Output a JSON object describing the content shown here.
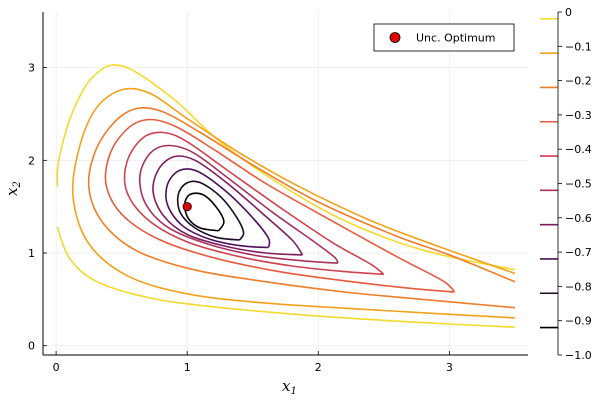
{
  "chart_data": {
    "type": "contour",
    "xlabel": "x",
    "xlabel_sub": "1",
    "ylabel": "x",
    "ylabel_sub": "2",
    "xlim": [
      -0.1,
      3.6
    ],
    "ylim": [
      -0.1,
      3.6
    ],
    "xticks": [
      0,
      1,
      2,
      3
    ],
    "yticks": [
      0,
      1,
      2,
      3
    ],
    "grid": true,
    "legend_position": "top-right",
    "optimum": {
      "name": "Unc. Optimum",
      "x": 1.0,
      "y": 1.5,
      "color": "#e00000"
    },
    "colorbar": {
      "min": -1.0,
      "max": 0,
      "ticks": [
        "0",
        "−0.1",
        "−0.2",
        "−0.3",
        "−0.4",
        "−0.5",
        "−0.6",
        "−0.7",
        "−0.8",
        "−0.9",
        "−1.0"
      ]
    },
    "contour_levels": [
      {
        "level": -0.1,
        "color": "#f5d92c",
        "points": [
          [
            3.5,
            0.82
          ],
          [
            2.8,
            1.03
          ],
          [
            2.2,
            1.35
          ],
          [
            1.7,
            1.75
          ],
          [
            1.25,
            2.2
          ],
          [
            0.88,
            2.68
          ],
          [
            0.5,
            3.02
          ],
          [
            0.28,
            2.9
          ],
          [
            0.12,
            2.5
          ],
          [
            0.02,
            2.0
          ],
          [
            0.01,
            1.72
          ]
        ]
      },
      {
        "level": -0.1,
        "color": "#f5d92c",
        "points": [
          [
            0.01,
            1.28
          ],
          [
            0.1,
            0.95
          ],
          [
            0.3,
            0.7
          ],
          [
            0.7,
            0.52
          ],
          [
            1.2,
            0.42
          ],
          [
            2.0,
            0.32
          ],
          [
            2.8,
            0.25
          ],
          [
            3.5,
            0.2
          ]
        ]
      },
      {
        "level": -0.2,
        "color": "#f2a21a",
        "points": [
          [
            3.5,
            0.3
          ],
          [
            2.5,
            0.38
          ],
          [
            1.6,
            0.46
          ],
          [
            1.0,
            0.56
          ],
          [
            0.55,
            0.75
          ],
          [
            0.25,
            1.1
          ],
          [
            0.13,
            1.6
          ],
          [
            0.17,
            2.1
          ],
          [
            0.3,
            2.55
          ],
          [
            0.5,
            2.76
          ],
          [
            0.72,
            2.72
          ],
          [
            1.0,
            2.45
          ],
          [
            1.4,
            2.08
          ],
          [
            1.85,
            1.72
          ],
          [
            2.4,
            1.35
          ],
          [
            2.9,
            1.08
          ],
          [
            3.5,
            0.78
          ]
        ]
      },
      {
        "level": -0.3,
        "color": "#ef7d2a",
        "points": [
          [
            3.5,
            0.41
          ],
          [
            2.8,
            0.5
          ],
          [
            2.2,
            0.58
          ],
          [
            1.55,
            0.7
          ],
          [
            1.05,
            0.82
          ],
          [
            0.62,
            1.02
          ],
          [
            0.36,
            1.32
          ],
          [
            0.25,
            1.7
          ],
          [
            0.3,
            2.1
          ],
          [
            0.45,
            2.42
          ],
          [
            0.62,
            2.56
          ],
          [
            0.82,
            2.52
          ],
          [
            1.1,
            2.3
          ],
          [
            1.5,
            1.95
          ],
          [
            2.0,
            1.55
          ],
          [
            2.6,
            1.18
          ],
          [
            3.0,
            0.98
          ],
          [
            3.5,
            0.69
          ]
        ]
      },
      {
        "level": -0.4,
        "color": "#e85a3e",
        "points": [
          [
            3.04,
            0.58
          ],
          [
            2.7,
            0.62
          ],
          [
            2.2,
            0.7
          ],
          [
            1.7,
            0.8
          ],
          [
            1.2,
            0.95
          ],
          [
            0.78,
            1.15
          ],
          [
            0.5,
            1.42
          ],
          [
            0.38,
            1.75
          ],
          [
            0.42,
            2.1
          ],
          [
            0.56,
            2.36
          ],
          [
            0.72,
            2.44
          ],
          [
            0.92,
            2.36
          ],
          [
            1.2,
            2.12
          ],
          [
            1.6,
            1.75
          ],
          [
            2.1,
            1.35
          ],
          [
            2.6,
            0.96
          ],
          [
            2.95,
            0.7
          ],
          [
            3.04,
            0.58
          ]
        ]
      },
      {
        "level": -0.5,
        "color": "#cf4250",
        "points": [
          [
            2.5,
            0.77
          ],
          [
            2.2,
            0.8
          ],
          [
            1.8,
            0.86
          ],
          [
            1.4,
            0.96
          ],
          [
            1.0,
            1.12
          ],
          [
            0.7,
            1.36
          ],
          [
            0.54,
            1.66
          ],
          [
            0.54,
            1.98
          ],
          [
            0.66,
            2.24
          ],
          [
            0.82,
            2.3
          ],
          [
            1.0,
            2.2
          ],
          [
            1.3,
            1.9
          ],
          [
            1.7,
            1.5
          ],
          [
            2.1,
            1.12
          ],
          [
            2.4,
            0.88
          ],
          [
            2.5,
            0.77
          ]
        ]
      },
      {
        "level": -0.6,
        "color": "#a8325c",
        "points": [
          [
            2.15,
            0.89
          ],
          [
            1.85,
            0.92
          ],
          [
            1.5,
            0.98
          ],
          [
            1.15,
            1.1
          ],
          [
            0.85,
            1.28
          ],
          [
            0.68,
            1.54
          ],
          [
            0.64,
            1.84
          ],
          [
            0.72,
            2.08
          ],
          [
            0.86,
            2.16
          ],
          [
            1.05,
            2.08
          ],
          [
            1.32,
            1.8
          ],
          [
            1.65,
            1.44
          ],
          [
            1.95,
            1.14
          ],
          [
            2.12,
            0.96
          ],
          [
            2.15,
            0.89
          ]
        ]
      },
      {
        "level": -0.7,
        "color": "#7d1e61",
        "points": [
          [
            1.88,
            0.98
          ],
          [
            1.6,
            1.0
          ],
          [
            1.3,
            1.07
          ],
          [
            1.0,
            1.2
          ],
          [
            0.82,
            1.4
          ],
          [
            0.74,
            1.66
          ],
          [
            0.78,
            1.9
          ],
          [
            0.9,
            2.04
          ],
          [
            1.06,
            2.0
          ],
          [
            1.3,
            1.76
          ],
          [
            1.58,
            1.42
          ],
          [
            1.8,
            1.14
          ],
          [
            1.88,
            0.98
          ]
        ]
      },
      {
        "level": -0.8,
        "color": "#4e105c",
        "points": [
          [
            1.62,
            1.06
          ],
          [
            1.4,
            1.08
          ],
          [
            1.15,
            1.16
          ],
          [
            0.96,
            1.3
          ],
          [
            0.85,
            1.52
          ],
          [
            0.85,
            1.74
          ],
          [
            0.94,
            1.89
          ],
          [
            1.08,
            1.88
          ],
          [
            1.3,
            1.66
          ],
          [
            1.5,
            1.38
          ],
          [
            1.62,
            1.16
          ],
          [
            1.62,
            1.06
          ]
        ]
      },
      {
        "level": -0.9,
        "color": "#1c0a26",
        "points": [
          [
            1.4,
            1.14
          ],
          [
            1.22,
            1.17
          ],
          [
            1.06,
            1.27
          ],
          [
            0.95,
            1.43
          ],
          [
            0.93,
            1.62
          ],
          [
            0.99,
            1.75
          ],
          [
            1.1,
            1.76
          ],
          [
            1.26,
            1.6
          ],
          [
            1.38,
            1.38
          ],
          [
            1.43,
            1.22
          ],
          [
            1.4,
            1.14
          ]
        ]
      },
      {
        "level": -0.95,
        "color": "#000000",
        "points": [
          [
            1.24,
            1.24
          ],
          [
            1.1,
            1.27
          ],
          [
            1.01,
            1.37
          ],
          [
            0.98,
            1.52
          ],
          [
            1.02,
            1.63
          ],
          [
            1.12,
            1.63
          ],
          [
            1.22,
            1.5
          ],
          [
            1.28,
            1.34
          ],
          [
            1.24,
            1.24
          ]
        ]
      }
    ],
    "colorbar_stops": [
      "#f5e83a",
      "#f5d92c",
      "#f2a21a",
      "#ef7d2a",
      "#e85a3e",
      "#cf4250",
      "#a8325c",
      "#7d1e61",
      "#4e105c",
      "#1c0a26",
      "#000000"
    ]
  }
}
